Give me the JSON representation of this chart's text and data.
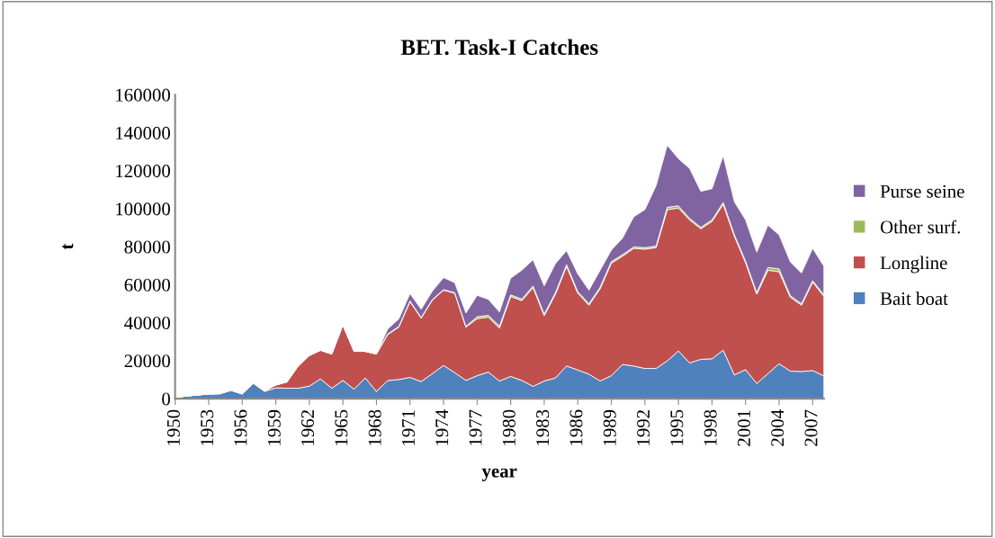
{
  "chart_data": {
    "type": "area",
    "stacked": true,
    "title": "BET. Task-I Catches",
    "xlabel": "year",
    "ylabel": "t",
    "categories": [
      "1950",
      null,
      null,
      "1953",
      null,
      null,
      "1956",
      null,
      null,
      "1959",
      null,
      null,
      "1962",
      null,
      null,
      "1965",
      null,
      null,
      "1968",
      null,
      null,
      "1971",
      null,
      null,
      "1974",
      null,
      null,
      "1977",
      null,
      null,
      "1980",
      null,
      null,
      "1983",
      null,
      null,
      "1986",
      null,
      null,
      "1989",
      null,
      null,
      "1992",
      null,
      null,
      "1995",
      null,
      null,
      "1998",
      null,
      null,
      "2001",
      null,
      null,
      "2004",
      null,
      null,
      "2007",
      null
    ],
    "series": [
      {
        "name": "Bait boat",
        "color": "#4f81bd",
        "values": [
          600,
          1400,
          1900,
          2500,
          2600,
          4400,
          2500,
          8000,
          3800,
          5700,
          5500,
          5500,
          6600,
          10400,
          5500,
          9600,
          5000,
          10900,
          3800,
          9500,
          10100,
          11200,
          9000,
          13200,
          17500,
          13700,
          9600,
          12100,
          14000,
          9300,
          11700,
          9600,
          6500,
          9300,
          10900,
          17200,
          15100,
          12900,
          9300,
          12100,
          18000,
          17200,
          15900,
          15900,
          19900,
          25100,
          18800,
          20700,
          21000,
          25500,
          12500,
          15300,
          8000,
          13200,
          18400,
          14500,
          14300,
          14800,
          12000
        ]
      },
      {
        "name": "Longline",
        "color": "#c0504d",
        "values": [
          0,
          0,
          0,
          0,
          0,
          0,
          0,
          500,
          300,
          1500,
          3300,
          11700,
          16100,
          15100,
          18000,
          29200,
          19900,
          14000,
          19700,
          24200,
          27600,
          39900,
          33400,
          38700,
          39600,
          41800,
          28100,
          30000,
          28900,
          27900,
          42100,
          42000,
          52000,
          34400,
          44100,
          52500,
          40400,
          36300,
          48600,
          59200,
          57000,
          61900,
          62800,
          63600,
          79600,
          75200,
          75300,
          68700,
          72300,
          76800,
          73000,
          56300,
          47000,
          54400,
          48400,
          38900,
          34900,
          46500,
          41900
        ]
      },
      {
        "name": "Other surf.",
        "color": "#9bbb59",
        "values": [
          0,
          0,
          0,
          0,
          0,
          0,
          0,
          0,
          0,
          0,
          0,
          0,
          0,
          0,
          0,
          0,
          0,
          0,
          0,
          300,
          300,
          300,
          300,
          300,
          300,
          300,
          300,
          1000,
          1000,
          1000,
          800,
          800,
          800,
          800,
          800,
          800,
          800,
          800,
          800,
          800,
          800,
          800,
          800,
          800,
          1200,
          1200,
          800,
          800,
          800,
          1000,
          800,
          800,
          800,
          1500,
          1500,
          800,
          800,
          800,
          800
        ]
      },
      {
        "name": "Purse seine",
        "color": "#8064a2",
        "values": [
          0,
          0,
          0,
          0,
          0,
          0,
          0,
          0,
          0,
          0,
          0,
          0,
          0,
          0,
          0,
          0,
          0,
          0,
          0,
          2600,
          4000,
          3900,
          4400,
          4400,
          6300,
          5200,
          7100,
          11300,
          8400,
          7400,
          8800,
          15200,
          13800,
          14900,
          15300,
          7400,
          9400,
          7100,
          8900,
          6100,
          8700,
          15800,
          20000,
          31800,
          32700,
          24800,
          26300,
          18900,
          16400,
          24600,
          17300,
          21700,
          21300,
          22200,
          17900,
          17800,
          16100,
          17000,
          15000
        ]
      }
    ],
    "ylim": [
      0,
      160000
    ],
    "yticks": [
      0,
      20000,
      40000,
      60000,
      80000,
      100000,
      120000,
      140000,
      160000
    ],
    "grid": false,
    "legend": "right"
  }
}
